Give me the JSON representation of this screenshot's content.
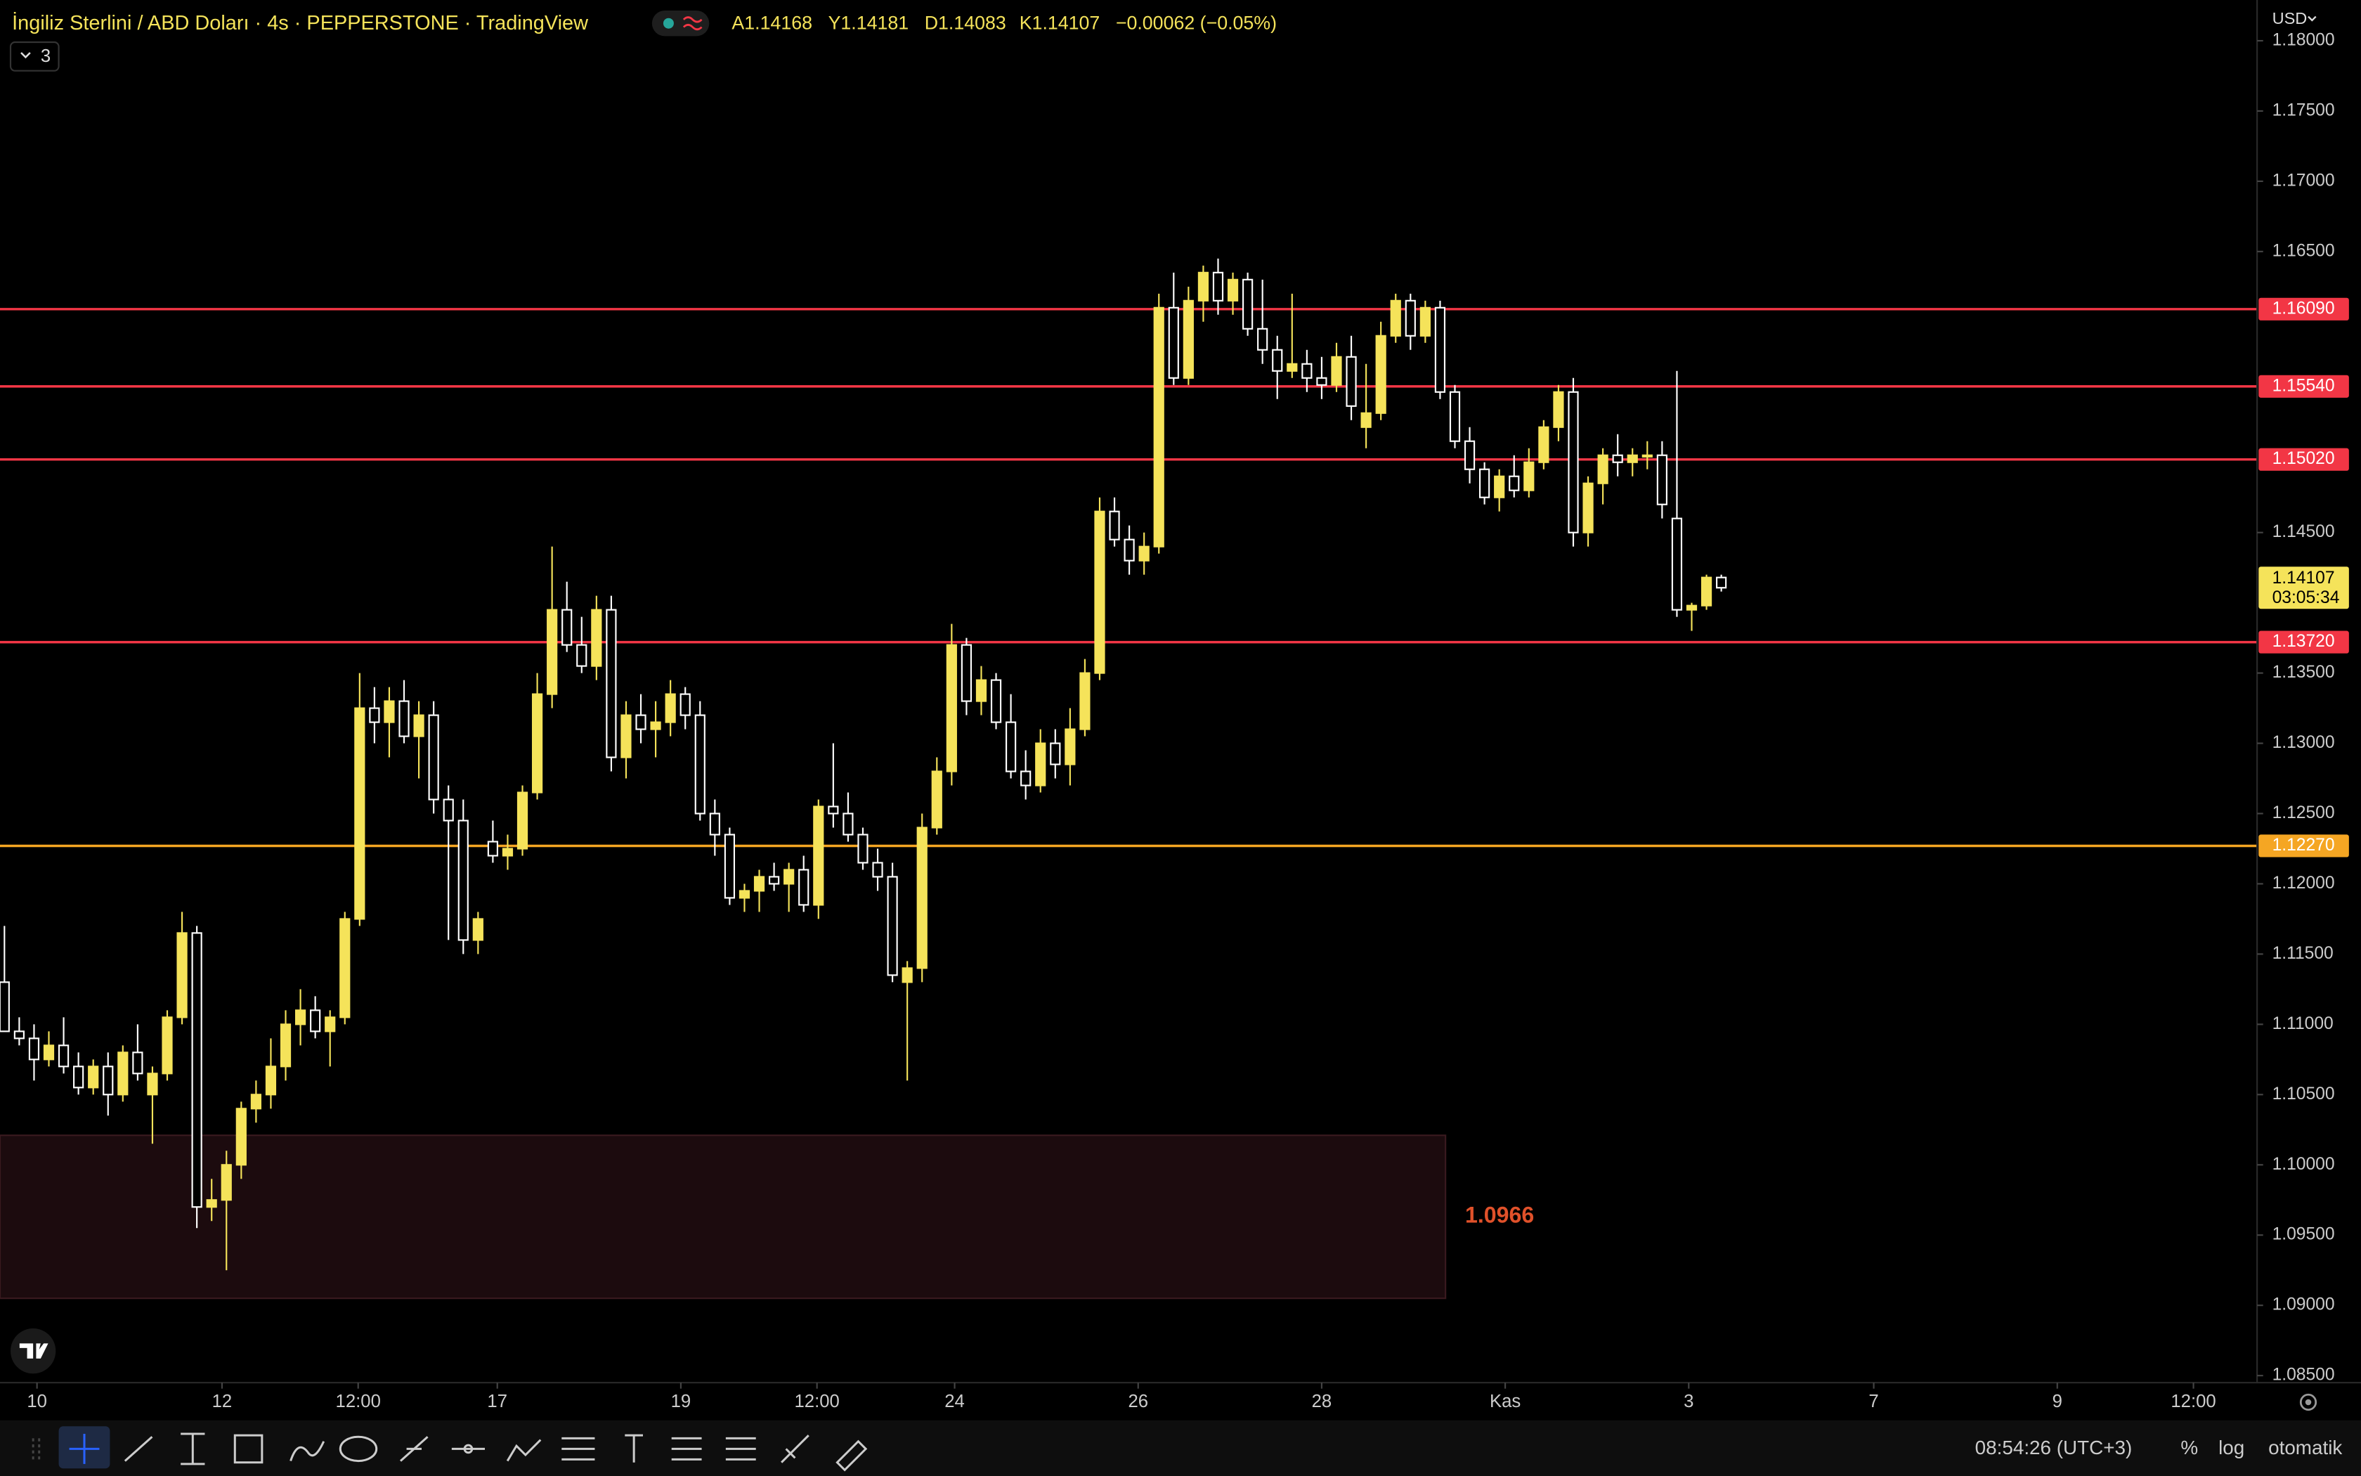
{
  "header": {
    "title": "İngiliz Sterlini / ABD Doları · 4s · PEPPERSTONE · TradingView",
    "open": "A1.14168",
    "high": "Y1.14181",
    "low": "D1.14083",
    "close": "K1.14107",
    "change": "−0.00062 (−0.05%)",
    "indicators": "3",
    "currency": "USD"
  },
  "chart_data": {
    "type": "candlestick",
    "bull_color": "#f5e35a",
    "bear_color": "#ffffff",
    "ylim": [
      1.0845,
      1.1829
    ],
    "xlim": [
      -0.3,
      152.1
    ],
    "yticks": [
      {
        "value": 1.18,
        "label": "1.18000"
      },
      {
        "value": 1.175,
        "label": "1.17500"
      },
      {
        "value": 1.17,
        "label": "1.17000"
      },
      {
        "value": 1.165,
        "label": "1.16500"
      },
      {
        "value": 1.145,
        "label": "1.14500"
      },
      {
        "value": 1.135,
        "label": "1.13500"
      },
      {
        "value": 1.13,
        "label": "1.13000"
      },
      {
        "value": 1.125,
        "label": "1.12500"
      },
      {
        "value": 1.12,
        "label": "1.12000"
      },
      {
        "value": 1.115,
        "label": "1.11500"
      },
      {
        "value": 1.11,
        "label": "1.11000"
      },
      {
        "value": 1.105,
        "label": "1.10500"
      },
      {
        "value": 1.1,
        "label": "1.10000"
      },
      {
        "value": 1.095,
        "label": "1.09500"
      },
      {
        "value": 1.09,
        "label": "1.09000"
      },
      {
        "value": 1.085,
        "label": "1.08500"
      }
    ],
    "xticks": [
      {
        "value": 2.2,
        "label": "10"
      },
      {
        "value": 14.7,
        "label": "12"
      },
      {
        "value": 23.9,
        "label": "12:00"
      },
      {
        "value": 33.3,
        "label": "17"
      },
      {
        "value": 45.7,
        "label": "19"
      },
      {
        "value": 54.9,
        "label": "12:00"
      },
      {
        "value": 64.2,
        "label": "24"
      },
      {
        "value": 76.6,
        "label": "26"
      },
      {
        "value": 89.0,
        "label": "28"
      },
      {
        "value": 101.4,
        "label": "Kas"
      },
      {
        "value": 113.8,
        "label": "3"
      },
      {
        "value": 126.3,
        "label": "7"
      },
      {
        "value": 138.7,
        "label": "9"
      },
      {
        "value": 147.9,
        "label": "12:00"
      }
    ],
    "levels": [
      {
        "value": 1.1609,
        "label": "1.16090",
        "color": "#f23645"
      },
      {
        "value": 1.1554,
        "label": "1.15540",
        "color": "#f23645"
      },
      {
        "value": 1.1502,
        "label": "1.15020",
        "color": "#f23645"
      },
      {
        "value": 1.1372,
        "label": "1.13720",
        "color": "#f23645"
      },
      {
        "value": 1.1227,
        "label": "1.12270",
        "color": "#f5a623"
      }
    ],
    "zone": {
      "top": 1.1021,
      "bottom": 1.0905,
      "label": 1.0966
    },
    "last_price": {
      "value": 1.14107,
      "label": "1.14107",
      "countdown": "03:05:34"
    },
    "ohlc": [
      [
        1.113,
        1.117,
        1.1095,
        1.1095
      ],
      [
        1.1095,
        1.1105,
        1.1085,
        1.109
      ],
      [
        1.109,
        1.11,
        1.106,
        1.1075
      ],
      [
        1.1075,
        1.1095,
        1.107,
        1.1085
      ],
      [
        1.1085,
        1.1105,
        1.1065,
        1.107
      ],
      [
        1.107,
        1.108,
        1.105,
        1.1055
      ],
      [
        1.1055,
        1.1075,
        1.105,
        1.107
      ],
      [
        1.107,
        1.108,
        1.1035,
        1.105
      ],
      [
        1.105,
        1.1085,
        1.1045,
        1.108
      ],
      [
        1.108,
        1.11,
        1.106,
        1.1065
      ],
      [
        1.105,
        1.107,
        1.1015,
        1.1065
      ],
      [
        1.1065,
        1.111,
        1.106,
        1.1105
      ],
      [
        1.1105,
        1.118,
        1.11,
        1.1165
      ],
      [
        1.1165,
        1.117,
        1.0955,
        1.097
      ],
      [
        1.097,
        1.099,
        1.096,
        1.0975
      ],
      [
        1.0975,
        1.101,
        1.0925,
        1.1
      ],
      [
        1.1,
        1.1045,
        1.099,
        1.104
      ],
      [
        1.104,
        1.106,
        1.103,
        1.105
      ],
      [
        1.105,
        1.109,
        1.104,
        1.107
      ],
      [
        1.107,
        1.111,
        1.106,
        1.11
      ],
      [
        1.11,
        1.1125,
        1.1085,
        1.111
      ],
      [
        1.111,
        1.112,
        1.109,
        1.1095
      ],
      [
        1.1095,
        1.111,
        1.107,
        1.1105
      ],
      [
        1.1105,
        1.118,
        1.11,
        1.1175
      ],
      [
        1.1175,
        1.135,
        1.117,
        1.1325
      ],
      [
        1.1325,
        1.134,
        1.13,
        1.1315
      ],
      [
        1.1315,
        1.134,
        1.129,
        1.133
      ],
      [
        1.133,
        1.1345,
        1.13,
        1.1305
      ],
      [
        1.1305,
        1.133,
        1.1275,
        1.132
      ],
      [
        1.132,
        1.133,
        1.125,
        1.126
      ],
      [
        1.126,
        1.127,
        1.116,
        1.1245
      ],
      [
        1.1245,
        1.126,
        1.115,
        1.116
      ],
      [
        1.116,
        1.118,
        1.115,
        1.1175
      ],
      [
        1.123,
        1.1245,
        1.1215,
        1.122
      ],
      [
        1.122,
        1.1235,
        1.121,
        1.1225
      ],
      [
        1.1225,
        1.127,
        1.122,
        1.1265
      ],
      [
        1.1265,
        1.135,
        1.126,
        1.1335
      ],
      [
        1.1335,
        1.144,
        1.1325,
        1.1395
      ],
      [
        1.1395,
        1.1415,
        1.1365,
        1.137
      ],
      [
        1.137,
        1.139,
        1.135,
        1.1355
      ],
      [
        1.1355,
        1.1405,
        1.1345,
        1.1395
      ],
      [
        1.1395,
        1.1405,
        1.128,
        1.129
      ],
      [
        1.129,
        1.133,
        1.1275,
        1.132
      ],
      [
        1.132,
        1.1335,
        1.13,
        1.131
      ],
      [
        1.131,
        1.133,
        1.129,
        1.1315
      ],
      [
        1.1315,
        1.1345,
        1.1305,
        1.1335
      ],
      [
        1.1335,
        1.134,
        1.131,
        1.132
      ],
      [
        1.132,
        1.133,
        1.1245,
        1.125
      ],
      [
        1.125,
        1.126,
        1.122,
        1.1235
      ],
      [
        1.1235,
        1.124,
        1.1185,
        1.119
      ],
      [
        1.119,
        1.12,
        1.118,
        1.1195
      ],
      [
        1.1195,
        1.121,
        1.118,
        1.1205
      ],
      [
        1.1205,
        1.1215,
        1.1195,
        1.12
      ],
      [
        1.12,
        1.1215,
        1.118,
        1.121
      ],
      [
        1.121,
        1.122,
        1.118,
        1.1185
      ],
      [
        1.1185,
        1.126,
        1.1175,
        1.1255
      ],
      [
        1.1255,
        1.13,
        1.124,
        1.125
      ],
      [
        1.125,
        1.1265,
        1.123,
        1.1235
      ],
      [
        1.1235,
        1.124,
        1.121,
        1.1215
      ],
      [
        1.1215,
        1.1225,
        1.1195,
        1.1205
      ],
      [
        1.1205,
        1.1215,
        1.113,
        1.1135
      ],
      [
        1.113,
        1.1145,
        1.106,
        1.114
      ],
      [
        1.114,
        1.125,
        1.113,
        1.124
      ],
      [
        1.124,
        1.129,
        1.1235,
        1.128
      ],
      [
        1.128,
        1.1385,
        1.127,
        1.137
      ],
      [
        1.137,
        1.1375,
        1.132,
        1.133
      ],
      [
        1.133,
        1.1355,
        1.132,
        1.1345
      ],
      [
        1.1345,
        1.135,
        1.131,
        1.1315
      ],
      [
        1.1315,
        1.1335,
        1.1275,
        1.128
      ],
      [
        1.128,
        1.1295,
        1.126,
        1.127
      ],
      [
        1.127,
        1.131,
        1.1265,
        1.13
      ],
      [
        1.13,
        1.131,
        1.1275,
        1.1285
      ],
      [
        1.1285,
        1.1325,
        1.127,
        1.131
      ],
      [
        1.131,
        1.136,
        1.1305,
        1.135
      ],
      [
        1.135,
        1.1475,
        1.1345,
        1.1465
      ],
      [
        1.1465,
        1.1475,
        1.144,
        1.1445
      ],
      [
        1.1445,
        1.1455,
        1.142,
        1.143
      ],
      [
        1.143,
        1.145,
        1.142,
        1.144
      ],
      [
        1.144,
        1.162,
        1.1435,
        1.161
      ],
      [
        1.161,
        1.1635,
        1.1555,
        1.156
      ],
      [
        1.156,
        1.1625,
        1.1555,
        1.1615
      ],
      [
        1.1615,
        1.164,
        1.16,
        1.1635
      ],
      [
        1.1635,
        1.1645,
        1.1605,
        1.1615
      ],
      [
        1.1615,
        1.1635,
        1.1605,
        1.163
      ],
      [
        1.163,
        1.1635,
        1.159,
        1.1595
      ],
      [
        1.1595,
        1.163,
        1.157,
        1.158
      ],
      [
        1.158,
        1.159,
        1.1545,
        1.1565
      ],
      [
        1.1565,
        1.162,
        1.156,
        1.157
      ],
      [
        1.157,
        1.158,
        1.155,
        1.156
      ],
      [
        1.156,
        1.1575,
        1.1545,
        1.1555
      ],
      [
        1.1555,
        1.1585,
        1.155,
        1.1575
      ],
      [
        1.1575,
        1.159,
        1.153,
        1.154
      ],
      [
        1.1525,
        1.157,
        1.151,
        1.1535
      ],
      [
        1.1535,
        1.16,
        1.153,
        1.159
      ],
      [
        1.159,
        1.162,
        1.1585,
        1.1615
      ],
      [
        1.1615,
        1.162,
        1.158,
        1.159
      ],
      [
        1.159,
        1.1615,
        1.1585,
        1.161
      ],
      [
        1.161,
        1.1615,
        1.1545,
        1.155
      ],
      [
        1.155,
        1.1555,
        1.151,
        1.1515
      ],
      [
        1.1515,
        1.1525,
        1.1485,
        1.1495
      ],
      [
        1.1495,
        1.15,
        1.147,
        1.1475
      ],
      [
        1.1475,
        1.1495,
        1.1465,
        1.149
      ],
      [
        1.149,
        1.1505,
        1.1475,
        1.148
      ],
      [
        1.148,
        1.151,
        1.1475,
        1.15
      ],
      [
        1.15,
        1.153,
        1.1495,
        1.1525
      ],
      [
        1.1525,
        1.1555,
        1.1515,
        1.155
      ],
      [
        1.155,
        1.156,
        1.144,
        1.145
      ],
      [
        1.145,
        1.149,
        1.144,
        1.1485
      ],
      [
        1.1485,
        1.151,
        1.147,
        1.1505
      ],
      [
        1.1505,
        1.152,
        1.149,
        1.15
      ],
      [
        1.15,
        1.151,
        1.149,
        1.1505
      ],
      [
        1.1505,
        1.1515,
        1.1495,
        1.1505
      ],
      [
        1.1505,
        1.1515,
        1.146,
        1.147
      ],
      [
        1.146,
        1.1565,
        1.139,
        1.1395
      ],
      [
        1.1395,
        1.14,
        1.138,
        1.1398
      ],
      [
        1.1398,
        1.142,
        1.1395,
        1.1418
      ],
      [
        1.1418,
        1.142,
        1.1408,
        1.14107
      ]
    ]
  },
  "status": {
    "clock": "08:54:26 (UTC+3)",
    "percent": "%",
    "log": "log",
    "auto": "otomatik"
  }
}
